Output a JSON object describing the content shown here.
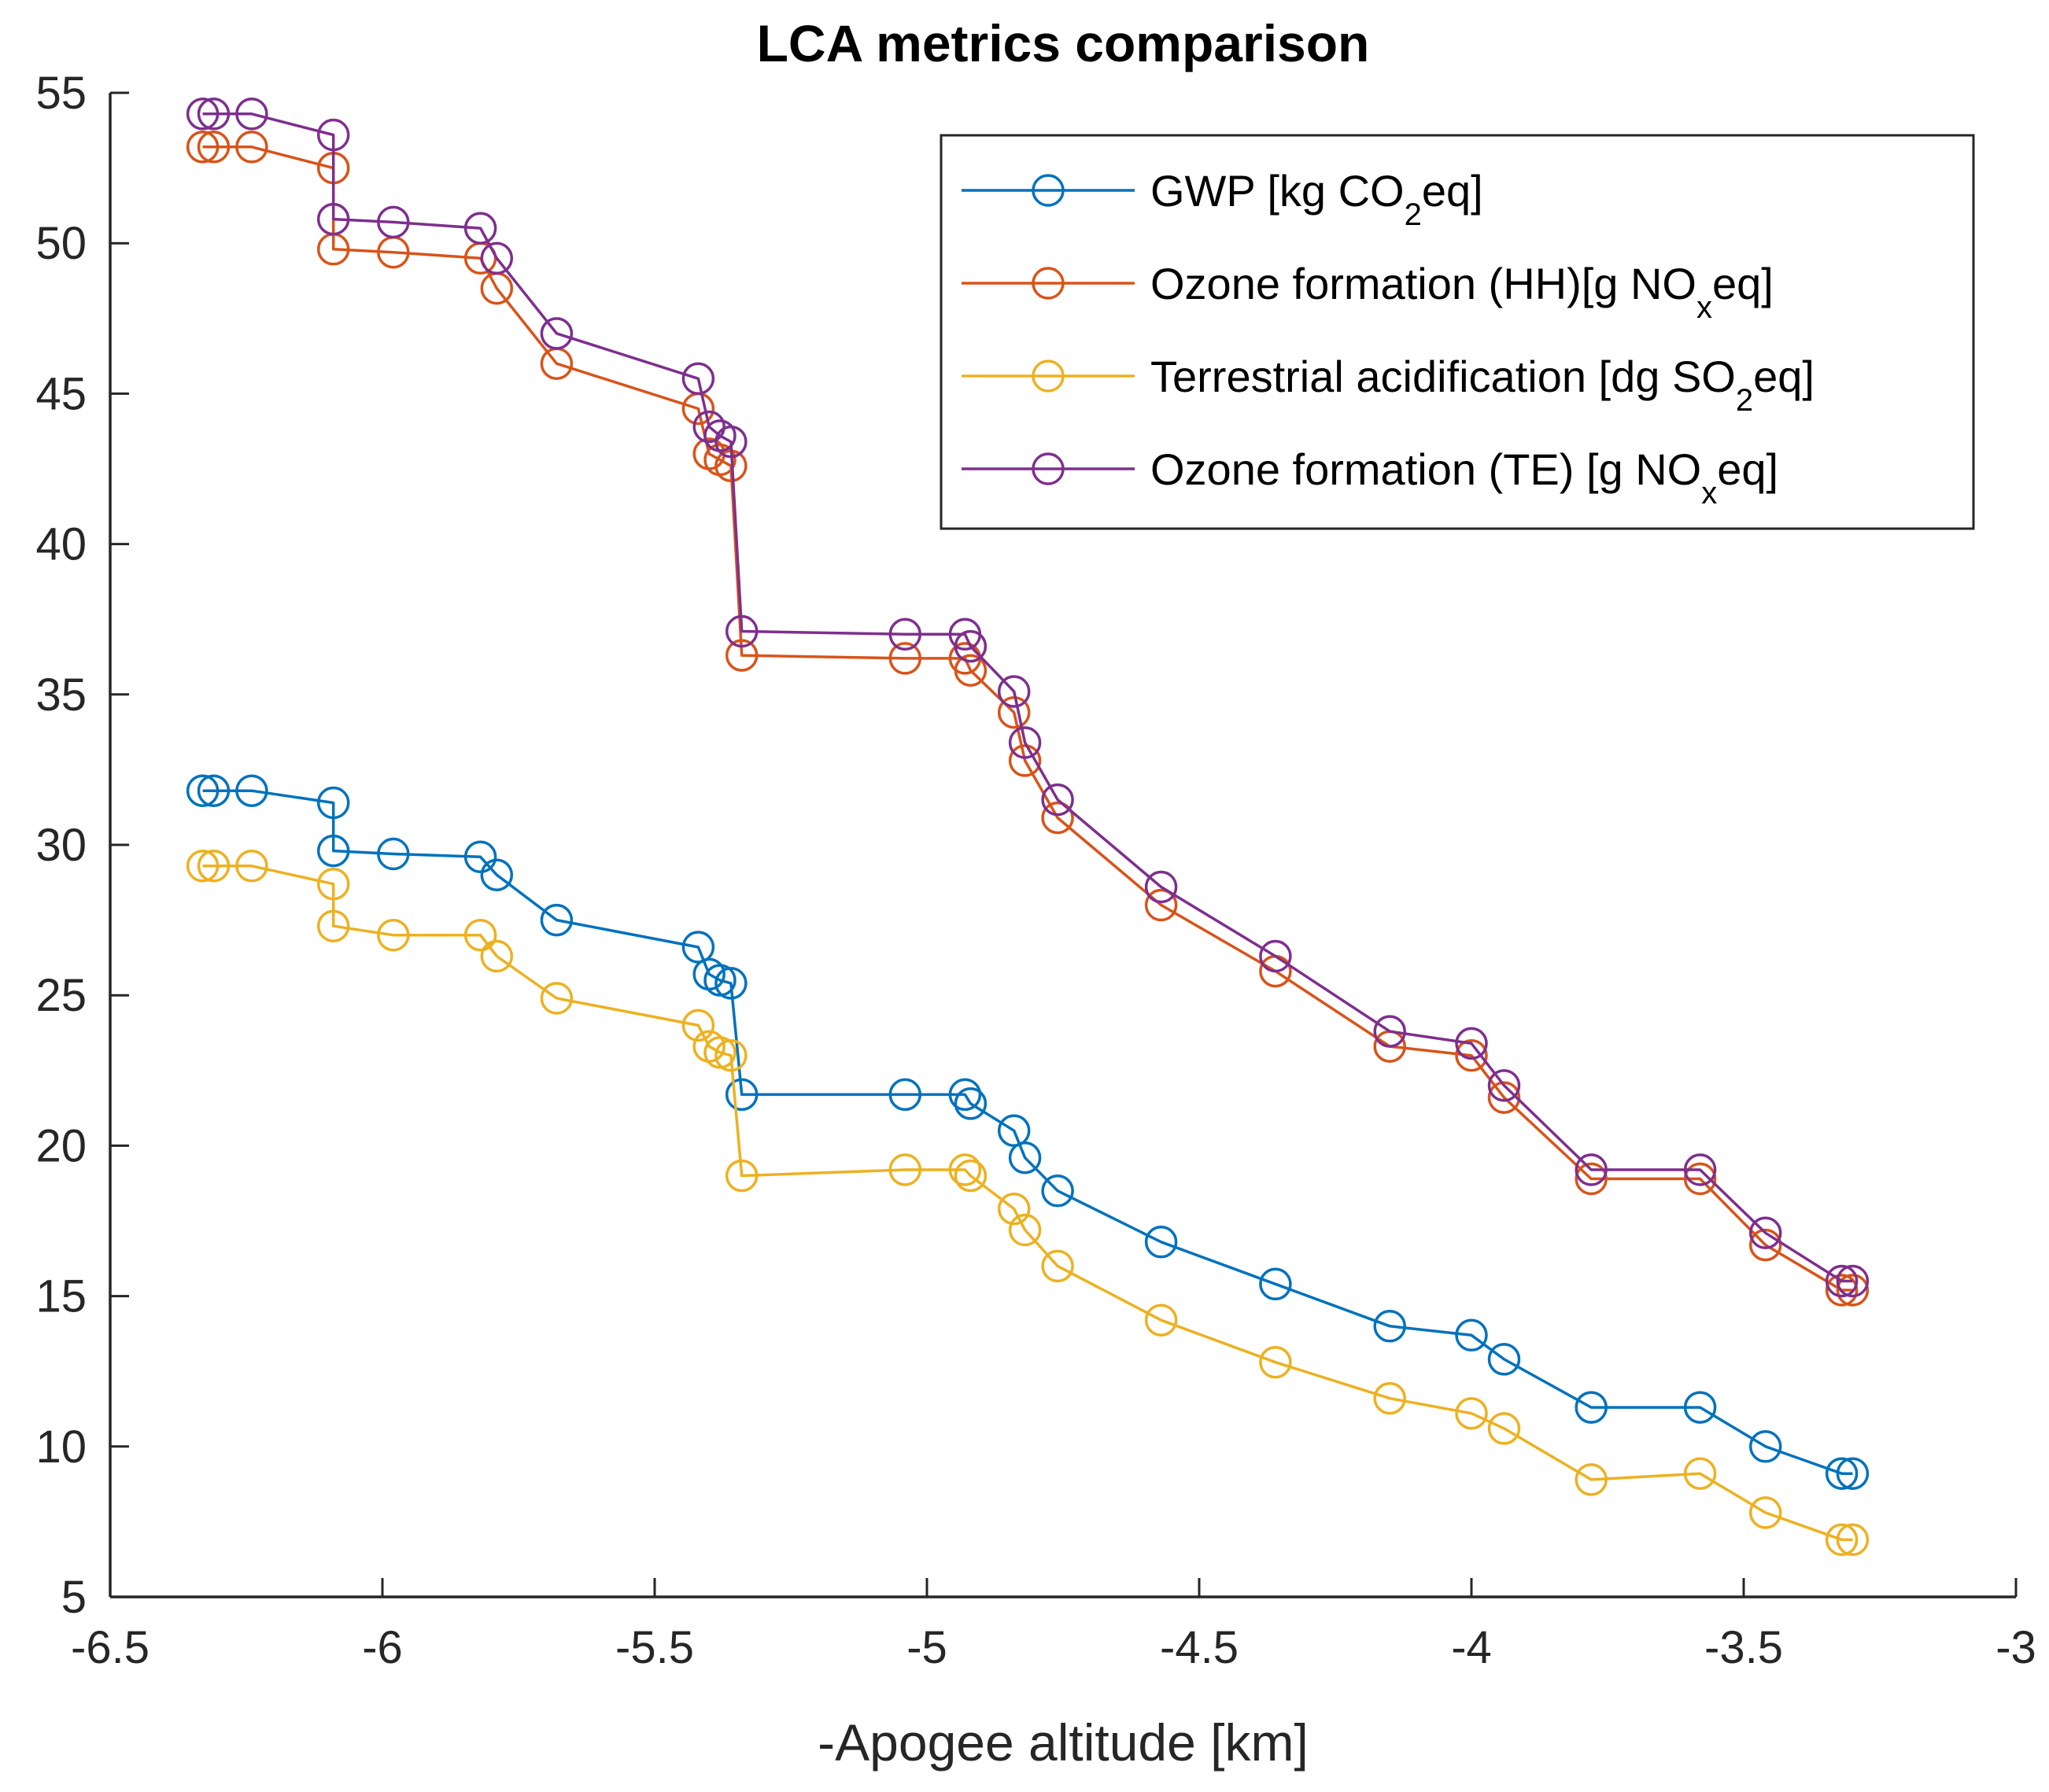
{
  "chart_data": {
    "type": "line",
    "title": "LCA metrics comparison",
    "xlabel": "-Apogee altitude [km]",
    "ylabel": "",
    "xlim": [
      -6.5,
      -3
    ],
    "ylim": [
      5,
      55
    ],
    "xticks": [
      -6.5,
      -6,
      -5.5,
      -5,
      -4.5,
      -4,
      -3.5,
      -3
    ],
    "xtick_labels": [
      "-6.5",
      "-6",
      "-5.5",
      "-5",
      "-4.5",
      "-4",
      "-3.5",
      "-3"
    ],
    "yticks": [
      5,
      10,
      15,
      20,
      25,
      30,
      35,
      40,
      45,
      50,
      55
    ],
    "ytick_labels": [
      "5",
      "10",
      "15",
      "20",
      "25",
      "30",
      "35",
      "40",
      "45",
      "50",
      "55"
    ],
    "grid": false,
    "legend_position": "top-right",
    "x": [
      -6.33,
      -6.31,
      -6.24,
      -6.09,
      -6.09,
      -5.98,
      -5.82,
      -5.79,
      -5.68,
      -5.42,
      -5.4,
      -5.38,
      -5.36,
      -5.34,
      -5.04,
      -4.93,
      -4.92,
      -4.84,
      -4.82,
      -4.76,
      -4.57,
      -4.36,
      -4.15,
      -4.0,
      -3.94,
      -3.78,
      -3.58,
      -3.46,
      -3.32,
      -3.3
    ],
    "series": [
      {
        "name": "GWP [kg CO2eq]",
        "legend_main": "GWP [kg CO",
        "legend_sub": "2",
        "legend_tail": "eq]",
        "color": "#0072BD",
        "values": [
          31.8,
          31.8,
          31.8,
          31.4,
          29.8,
          29.7,
          29.6,
          29.0,
          27.5,
          26.6,
          25.7,
          25.5,
          25.4,
          21.7,
          21.7,
          21.7,
          21.4,
          20.5,
          19.6,
          18.5,
          16.8,
          15.4,
          14.0,
          13.7,
          12.9,
          11.3,
          11.3,
          10.0,
          9.1,
          9.1
        ]
      },
      {
        "name": "Ozone formation (HH)[g NOxeq]",
        "legend_main": "Ozone formation (HH)[g NO",
        "legend_sub": "x",
        "legend_tail": "eq]",
        "color": "#D95319",
        "values": [
          53.2,
          53.2,
          53.2,
          52.5,
          49.8,
          49.7,
          49.5,
          48.5,
          46.0,
          44.5,
          43.0,
          42.8,
          42.6,
          36.3,
          36.2,
          36.2,
          35.8,
          34.4,
          32.8,
          30.9,
          28.0,
          25.8,
          23.3,
          23.0,
          21.6,
          18.9,
          18.9,
          16.7,
          15.2,
          15.2
        ]
      },
      {
        "name": "Terrestrial acidification [dg SO2eq]",
        "legend_main": "Terrestrial acidification [dg SO",
        "legend_sub": "2",
        "legend_tail": "eq]",
        "color": "#EDB120",
        "values": [
          29.3,
          29.3,
          29.3,
          28.7,
          27.3,
          27.0,
          27.0,
          26.3,
          24.9,
          24.0,
          23.3,
          23.1,
          23.0,
          19.0,
          19.2,
          19.2,
          19.0,
          17.9,
          17.2,
          16.0,
          14.2,
          12.8,
          11.6,
          11.1,
          10.6,
          8.9,
          9.1,
          7.8,
          6.9,
          6.9
        ]
      },
      {
        "name": "Ozone formation (TE) [g NOxeq]",
        "legend_main": "Ozone formation (TE) [g NO",
        "legend_sub": "x",
        "legend_tail": "eq]",
        "color": "#7E2F8E",
        "values": [
          54.3,
          54.3,
          54.3,
          53.6,
          50.8,
          50.7,
          50.5,
          49.5,
          47.0,
          45.5,
          43.9,
          43.6,
          43.4,
          37.1,
          37.0,
          37.0,
          36.6,
          35.1,
          33.4,
          31.5,
          28.6,
          26.3,
          23.8,
          23.4,
          22.0,
          19.2,
          19.2,
          17.1,
          15.5,
          15.5
        ]
      }
    ]
  }
}
